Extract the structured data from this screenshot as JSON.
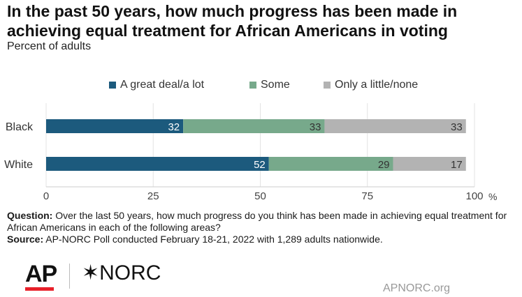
{
  "title": "In the past 50 years, how much progress has been made in achieving equal treatment for African Americans in voting",
  "subtitle": "Percent of adults",
  "footnote": {
    "question_label": "Question:",
    "question_text": "Over the last 50 years, how much progress do you think has been made in achieving equal treatment for African Americans in each of the following areas?",
    "source_label": "Source:",
    "source_text": "AP-NORC Poll conducted February 18-21, 2022 with 1,289 adults nationwide."
  },
  "logos": {
    "ap": "AP",
    "norc_mark": "✶",
    "norc": "NORC",
    "site": "APNORC.org"
  },
  "chart_data": {
    "type": "bar",
    "orientation": "horizontal",
    "stacked": true,
    "categories": [
      "Black",
      "White"
    ],
    "series": [
      {
        "name": "A great deal/a lot",
        "color": "#1c5a7d",
        "values": [
          32,
          52
        ]
      },
      {
        "name": "Some",
        "color": "#77a98b",
        "values": [
          33,
          29
        ]
      },
      {
        "name": "Only a little/none",
        "color": "#b3b3b3",
        "values": [
          33,
          17
        ]
      }
    ],
    "xlim": [
      0,
      100
    ],
    "xticks": [
      "0",
      "25",
      "50",
      "75",
      "100"
    ],
    "x_unit": "%",
    "legend_position": "top",
    "grid": true
  }
}
